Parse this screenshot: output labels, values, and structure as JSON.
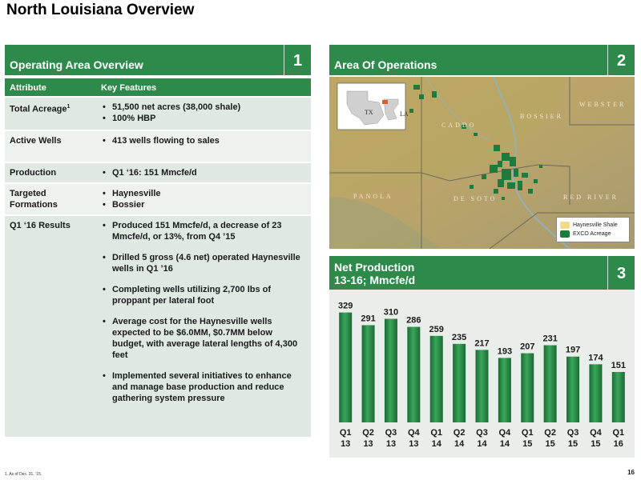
{
  "page": {
    "title": "North Louisiana Overview",
    "page_number": "16",
    "footnote": "1.  As of Dec. 31, ’15."
  },
  "panel1": {
    "title": "Operating Area Overview",
    "number": "1",
    "header": {
      "attribute": "Attribute",
      "features": "Key Features"
    },
    "rows": [
      {
        "attribute": "Total Acreage",
        "sup": "1",
        "features": [
          "51,500 net acres (38,000 shale)",
          "100% HBP"
        ]
      },
      {
        "attribute": "Active Wells",
        "features": [
          "413 wells flowing to sales"
        ]
      },
      {
        "attribute": "Production",
        "features": [
          "Q1 ‘16: 151 Mmcfe/d"
        ]
      },
      {
        "attribute": "Targeted Formations",
        "features": [
          "Haynesville",
          "Bossier"
        ]
      },
      {
        "attribute": "Q1 ‘16 Results",
        "features": [
          "Produced 151 Mmcfe/d, a decrease of 23 Mmcfe/d, or 13%, from Q4 ’15",
          "Drilled 5 gross (4.6 net) operated Haynesville wells in Q1 ’16",
          "Completing wells utilizing 2,700 lbs of proppant per lateral foot",
          "Average cost for the Haynesville wells expected to be $6.0MM, $0.7MM below budget, with average lateral lengths of 4,300 feet",
          "Implemented several initiatives to enhance and manage base production and reduce gathering system pressure"
        ]
      }
    ]
  },
  "panel2": {
    "title": "Area Of Operations",
    "number": "2",
    "map_labels": {
      "tx": "TX",
      "la": "LA",
      "caddo": "CADDO",
      "bossier": "BOSSIER",
      "webster": "WEBSTER",
      "panola": "PANOLA",
      "desoto": "DE SOTO",
      "red_river": "RED RIVER"
    },
    "legend": [
      {
        "label": "Haynesville Shale",
        "color": "#f3d98a"
      },
      {
        "label": "EXCO Acreage",
        "color": "#1f7a3d"
      }
    ]
  },
  "panel3": {
    "title_line1": "Net Production",
    "title_line2": "13-16; Mmcfe/d",
    "number": "3"
  },
  "chart_data": {
    "type": "bar",
    "title": "Net Production 13-16; Mmcfe/d",
    "categories": [
      "Q1 13",
      "Q2 13",
      "Q3 13",
      "Q4 13",
      "Q1 14",
      "Q2 14",
      "Q3 14",
      "Q4 14",
      "Q1 15",
      "Q2 15",
      "Q3 15",
      "Q4 15",
      "Q1 16"
    ],
    "category_lines": [
      [
        "Q1",
        "13"
      ],
      [
        "Q2",
        "13"
      ],
      [
        "Q3",
        "13"
      ],
      [
        "Q4",
        "13"
      ],
      [
        "Q1",
        "14"
      ],
      [
        "Q2",
        "14"
      ],
      [
        "Q3",
        "14"
      ],
      [
        "Q4",
        "14"
      ],
      [
        "Q1",
        "15"
      ],
      [
        "Q2",
        "15"
      ],
      [
        "Q3",
        "15"
      ],
      [
        "Q4",
        "15"
      ],
      [
        "Q1",
        "16"
      ]
    ],
    "values": [
      329,
      291,
      310,
      286,
      259,
      235,
      217,
      193,
      207,
      231,
      197,
      174,
      151
    ],
    "ylim": [
      0,
      340
    ],
    "grid": false,
    "bar_color": "#2e8a4a"
  }
}
